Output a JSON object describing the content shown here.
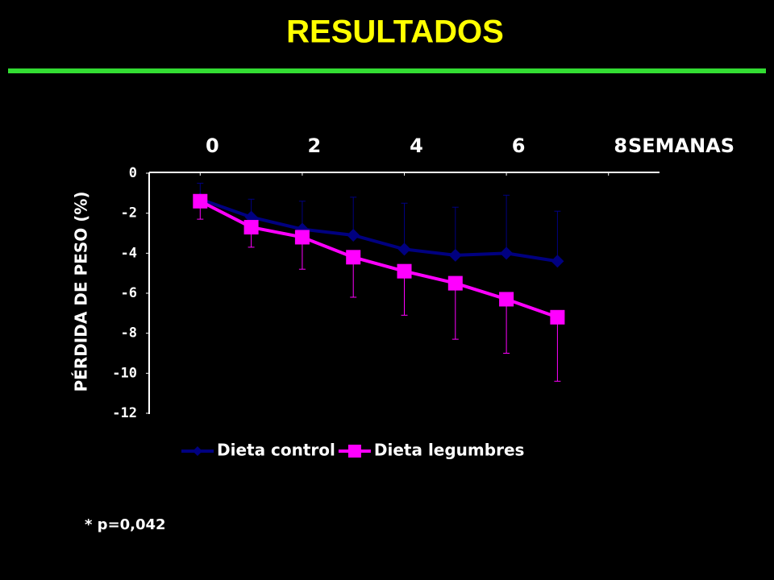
{
  "title": "RESULTADOS",
  "note": "* p=0,042",
  "chart_data": {
    "type": "line",
    "x_label": "SEMANAS",
    "y_label": "PÉRDIDA DE PESO (%)",
    "x": [
      0,
      1,
      2,
      3,
      4,
      5,
      6,
      7
    ],
    "xlim": [
      -1,
      9
    ],
    "xticks": [
      0,
      2,
      4,
      6,
      8
    ],
    "ylim": [
      -12,
      0
    ],
    "yticks": [
      0,
      -2,
      -4,
      -6,
      -8,
      -10,
      -12
    ],
    "grid": false,
    "legend": "bottom",
    "series": [
      {
        "name": "Dieta control",
        "color": "#000080",
        "marker": "diamond",
        "error_direction": "up",
        "values": [
          -1.3,
          -2.2,
          -2.8,
          -3.1,
          -3.8,
          -4.1,
          -4.0,
          -4.4
        ],
        "errors": [
          0.8,
          0.9,
          1.4,
          1.9,
          2.3,
          2.4,
          2.9,
          2.5
        ]
      },
      {
        "name": "Dieta legumbres",
        "color": "#ff00ff",
        "marker": "square",
        "error_direction": "down",
        "values": [
          -1.4,
          -2.7,
          -3.2,
          -4.2,
          -4.9,
          -5.5,
          -6.3,
          -7.2
        ],
        "errors": [
          0.9,
          1.0,
          1.6,
          2.0,
          2.2,
          2.8,
          2.7,
          3.2
        ]
      }
    ]
  }
}
